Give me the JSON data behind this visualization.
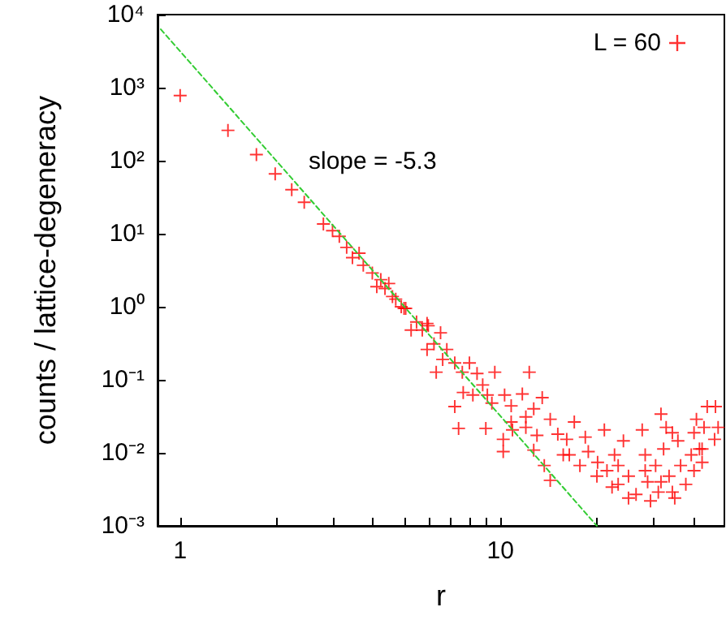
{
  "chart_data": {
    "type": "scatter",
    "xlabel": "r",
    "ylabel": "counts / lattice-degeneracy",
    "log": "xy",
    "grid": false,
    "legend": "top right",
    "marker": "cross",
    "xlim": [
      0.85,
      50
    ],
    "ylim": [
      0.001,
      10000
    ],
    "xticks": [
      1,
      {
        "value": 2,
        "label": null
      },
      {
        "value": 3,
        "label": null
      },
      {
        "value": 4,
        "label": null
      },
      {
        "value": 5,
        "label": null
      },
      {
        "value": 6,
        "label": null
      },
      {
        "value": 7,
        "label": null
      },
      {
        "value": 8,
        "label": null
      },
      {
        "value": 9,
        "label": null
      },
      10,
      {
        "value": 20,
        "label": null
      },
      {
        "value": 30,
        "label": null
      },
      {
        "value": 40,
        "label": null
      }
    ],
    "yticks": [
      {
        "value": 0.001,
        "label": "10⁻³"
      },
      {
        "value": 0.01,
        "label": "10⁻²"
      },
      {
        "value": 0.1,
        "label": "10⁻¹"
      },
      {
        "value": 1,
        "label": "10⁰"
      },
      {
        "value": 10,
        "label": "10¹"
      },
      {
        "value": 100,
        "label": "10²"
      },
      {
        "value": 1000,
        "label": "10³"
      },
      {
        "value": 10000,
        "label": "10⁴"
      }
    ],
    "annotations": [
      "slope = -5.3"
    ],
    "series": [
      {
        "name": "L = 60",
        "color": "#ff0000",
        "x": [
          1.0,
          1.41,
          1.73,
          1.98,
          2.23,
          2.44,
          2.8,
          2.99,
          3.14,
          3.31,
          3.45,
          3.62,
          3.73,
          3.98,
          4.23,
          4.48,
          4.11,
          4.36,
          4.6,
          4.71,
          4.9,
          5.06,
          5.47,
          5.9,
          5.0,
          5.26,
          5.7,
          5.95,
          6.5,
          5.9,
          6.2,
          6.8,
          6.6,
          6.3,
          7.2,
          7.6,
          8.0,
          8.45,
          7.2,
          7.65,
          8.2,
          7.4,
          8.8,
          9.1,
          9.6,
          9.4,
          9.0,
          10.3,
          10.8,
          11.7,
          12.3,
          10.2,
          10.2,
          10.9,
          12.0,
          12.7,
          13.5,
          12.7,
          14.3,
          15.1,
          13.7,
          14.3,
          16.1,
          17.0,
          16.4,
          18.4,
          18.8,
          20.1,
          21.1,
          21.5,
          22.7,
          23.3,
          24.2,
          25.1,
          26.5,
          27.7,
          28.3,
          28.8,
          30.5,
          31.1,
          32.3,
          32.9,
          33.6,
          35.0,
          35.8,
          36.5,
          37.9,
          39.4,
          40.9,
          41.8,
          43.2,
          44.2,
          46.9,
          46.6,
          47.8,
          40.2,
          42.6,
          31.7,
          34.4,
          10.8,
          12.0,
          13.0,
          15.7,
          17.7,
          20.0,
          22.3,
          25.1,
          29.4,
          34.4,
          40.2,
          42.6,
          28.3,
          31.7,
          23.3
        ],
        "values": [
          780,
          260,
          121,
          66,
          40,
          27,
          13.6,
          11,
          9.2,
          6.5,
          4.7,
          5.4,
          3.7,
          2.9,
          2.35,
          2.08,
          1.88,
          1.78,
          1.38,
          1.27,
          1.0,
          0.95,
          0.62,
          0.59,
          0.95,
          0.48,
          0.48,
          0.55,
          0.44,
          0.26,
          0.31,
          0.26,
          0.19,
          0.127,
          0.17,
          0.127,
          0.17,
          0.122,
          0.043,
          0.067,
          0.062,
          0.0216,
          0.085,
          0.062,
          0.127,
          0.048,
          0.0216,
          0.062,
          0.044,
          0.064,
          0.127,
          0.0153,
          0.0104,
          0.0206,
          0.0223,
          0.04,
          0.057,
          0.0109,
          0.0288,
          0.018,
          0.0067,
          0.0042,
          0.0153,
          0.0264,
          0.0094,
          0.0164,
          0.0104,
          0.0074,
          0.0206,
          0.0057,
          0.0094,
          0.0037,
          0.0146,
          0.0048,
          0.0027,
          0.0206,
          0.0094,
          0.004,
          0.0067,
          0.0029,
          0.0113,
          0.0223,
          0.0048,
          0.0024,
          0.0146,
          0.0067,
          0.0037,
          0.0094,
          0.0288,
          0.0113,
          0.0223,
          0.043,
          0.043,
          0.0153,
          0.0223,
          0.0188,
          0.0074,
          0.034,
          0.0188,
          0.0264,
          0.031,
          0.0173,
          0.0094,
          0.0067,
          0.0048,
          0.0034,
          0.0024,
          0.0022,
          0.0029,
          0.0057,
          0.0113,
          0.0057,
          0.004,
          0.0067
        ]
      },
      {
        "color": "#33cc33",
        "type": "line",
        "line_style": "dashed",
        "marker": "none",
        "x": [
          0.87,
          20
        ],
        "values": [
          6300,
          0.001
        ]
      }
    ]
  }
}
